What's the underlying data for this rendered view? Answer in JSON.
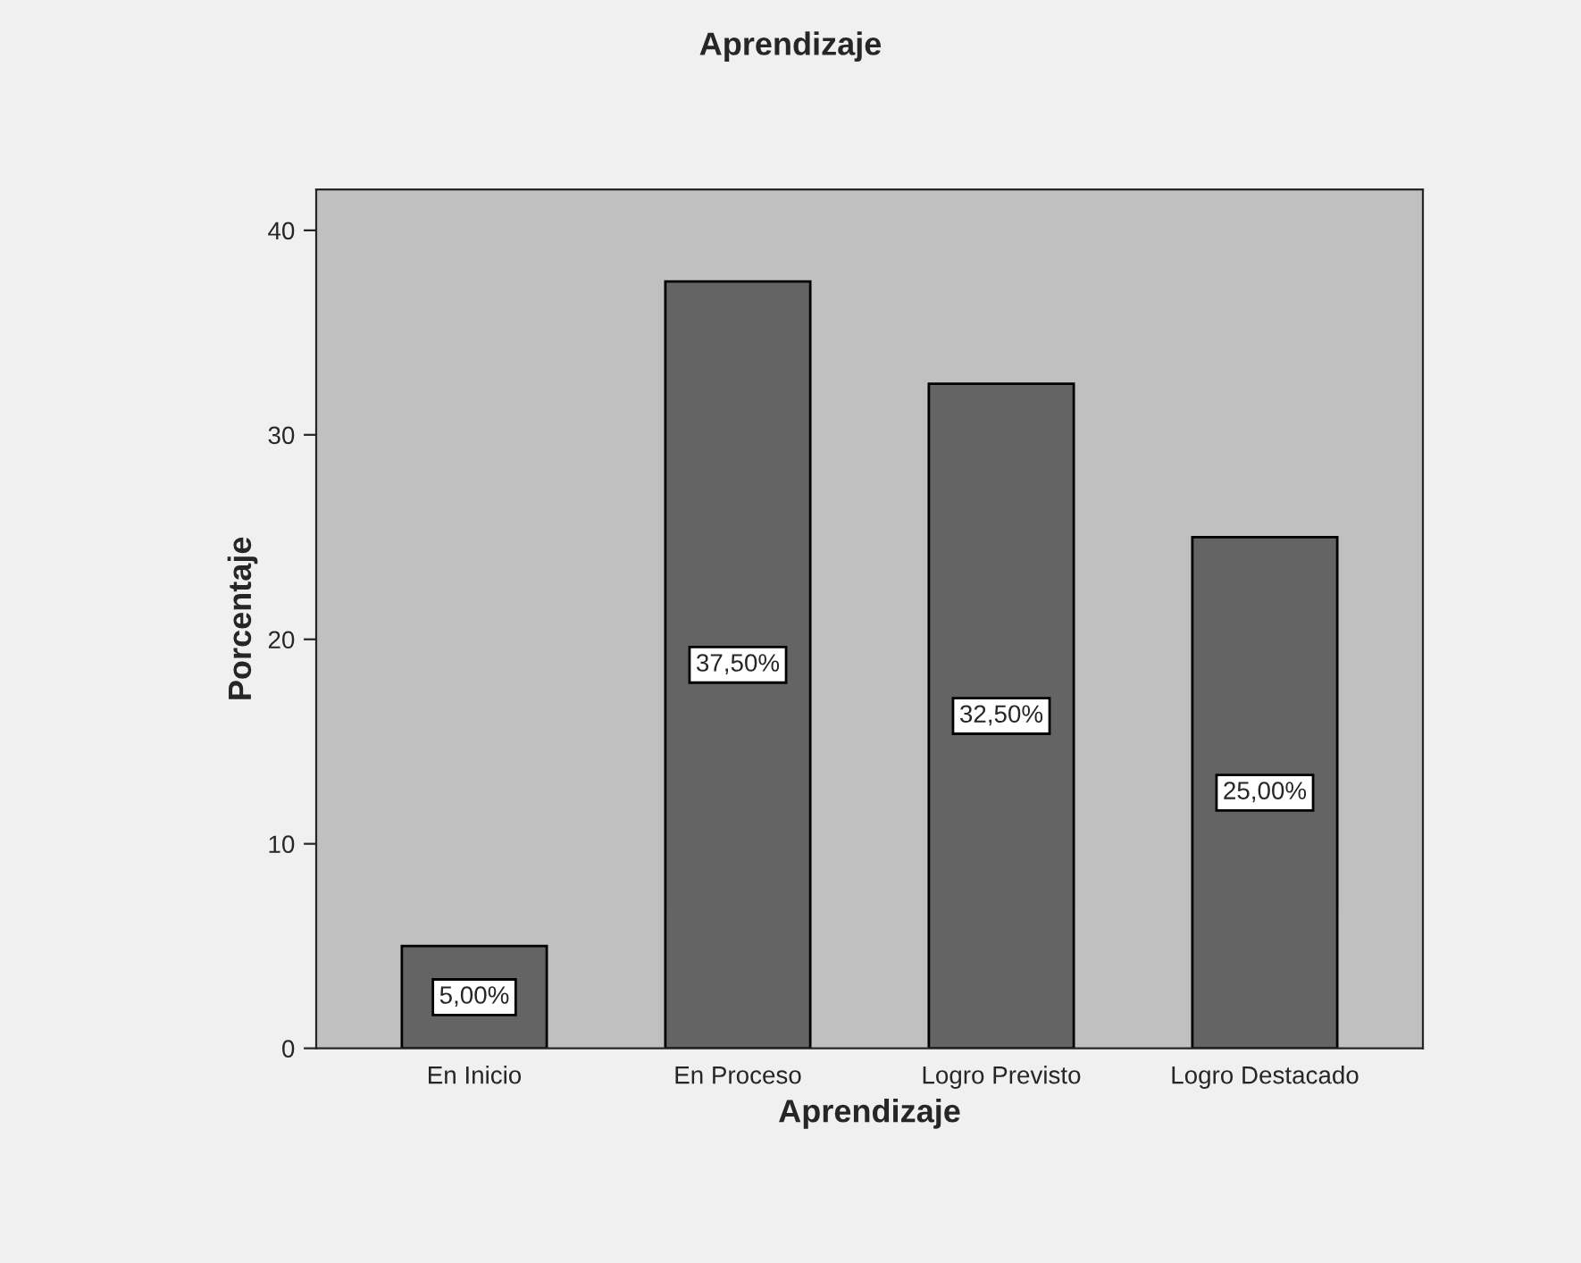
{
  "chart_data": {
    "type": "bar",
    "title": "Aprendizaje",
    "xlabel": "Aprendizaje",
    "ylabel": "Porcentaje",
    "categories": [
      "En Inicio",
      "En Proceso",
      "Logro Previsto",
      "Logro Destacado"
    ],
    "values": [
      5,
      37.5,
      32.5,
      25
    ],
    "value_labels": [
      "5,00%",
      "37,50%",
      "32,50%",
      "25,00%"
    ],
    "color": "#646464",
    "ylim": [
      0,
      42
    ],
    "yticks": [
      0,
      10,
      20,
      30,
      40
    ],
    "grid": false
  }
}
